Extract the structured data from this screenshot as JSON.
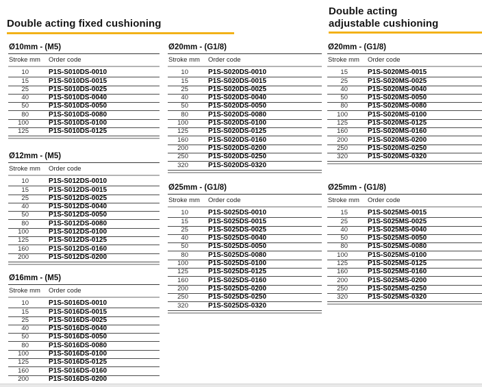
{
  "accent_color": "#F2B117",
  "sections": {
    "fixed": {
      "title": "Double acting fixed cushioning"
    },
    "adjustable": {
      "title_line1": "Double acting",
      "title_line2": "adjustable cushioning"
    }
  },
  "columns": {
    "stroke": "Stroke mm",
    "code": "Order code"
  },
  "tables": [
    {
      "heading": "Ø10mm - (M5)",
      "section": "fixed",
      "rows": [
        [
          "10",
          "P1S-S010DS-0010"
        ],
        [
          "15",
          "P1S-S010DS-0015"
        ],
        [
          "25",
          "P1S-S010DS-0025"
        ],
        [
          "40",
          "P1S-S010DS-0040"
        ],
        [
          "50",
          "P1S-S010DS-0050"
        ],
        [
          "80",
          "P1S-S010DS-0080"
        ],
        [
          "100",
          "P1S-S010DS-0100"
        ],
        [
          "125",
          "P1S-S010DS-0125"
        ]
      ]
    },
    {
      "heading": "Ø12mm - (M5)",
      "section": "fixed",
      "rows": [
        [
          "10",
          "P1S-S012DS-0010"
        ],
        [
          "15",
          "P1S-S012DS-0015"
        ],
        [
          "25",
          "P1S-S012DS-0025"
        ],
        [
          "40",
          "P1S-S012DS-0040"
        ],
        [
          "50",
          "P1S-S012DS-0050"
        ],
        [
          "80",
          "P1S-S012DS-0080"
        ],
        [
          "100",
          "P1S-S012DS-0100"
        ],
        [
          "125",
          "P1S-S012DS-0125"
        ],
        [
          "160",
          "P1S-S012DS-0160"
        ],
        [
          "200",
          "P1S-S012DS-0200"
        ]
      ]
    },
    {
      "heading": "Ø16mm - (M5)",
      "section": "fixed",
      "rows": [
        [
          "10",
          "P1S-S016DS-0010"
        ],
        [
          "15",
          "P1S-S016DS-0015"
        ],
        [
          "25",
          "P1S-S016DS-0025"
        ],
        [
          "40",
          "P1S-S016DS-0040"
        ],
        [
          "50",
          "P1S-S016DS-0050"
        ],
        [
          "80",
          "P1S-S016DS-0080"
        ],
        [
          "100",
          "P1S-S016DS-0100"
        ],
        [
          "125",
          "P1S-S016DS-0125"
        ],
        [
          "160",
          "P1S-S016DS-0160"
        ],
        [
          "200",
          "P1S-S016DS-0200"
        ]
      ]
    },
    {
      "heading": "Ø20mm - (G1/8)",
      "section": "fixed",
      "rows": [
        [
          "10",
          "P1S-S020DS-0010"
        ],
        [
          "15",
          "P1S-S020DS-0015"
        ],
        [
          "25",
          "P1S-S020DS-0025"
        ],
        [
          "40",
          "P1S-S020DS-0040"
        ],
        [
          "50",
          "P1S-S020DS-0050"
        ],
        [
          "80",
          "P1S-S020DS-0080"
        ],
        [
          "100",
          "P1S-S020DS-0100"
        ],
        [
          "125",
          "P1S-S020DS-0125"
        ],
        [
          "160",
          "P1S-S020DS-0160"
        ],
        [
          "200",
          "P1S-S020DS-0200"
        ],
        [
          "250",
          "P1S-S020DS-0250"
        ],
        [
          "320",
          "P1S-S020DS-0320"
        ]
      ]
    },
    {
      "heading": "Ø25mm - (G1/8)",
      "section": "fixed",
      "rows": [
        [
          "10",
          "P1S-S025DS-0010"
        ],
        [
          "15",
          "P1S-S025DS-0015"
        ],
        [
          "25",
          "P1S-S025DS-0025"
        ],
        [
          "40",
          "P1S-S025DS-0040"
        ],
        [
          "50",
          "P1S-S025DS-0050"
        ],
        [
          "80",
          "P1S-S025DS-0080"
        ],
        [
          "100",
          "P1S-S025DS-0100"
        ],
        [
          "125",
          "P1S-S025DS-0125"
        ],
        [
          "160",
          "P1S-S025DS-0160"
        ],
        [
          "200",
          "P1S-S025DS-0200"
        ],
        [
          "250",
          "P1S-S025DS-0250"
        ],
        [
          "320",
          "P1S-S025DS-0320"
        ]
      ]
    },
    {
      "heading": "Ø20mm - (G1/8)",
      "section": "adjustable",
      "rows": [
        [
          "15",
          "P1S-S020MS-0015"
        ],
        [
          "25",
          "P1S-S020MS-0025"
        ],
        [
          "40",
          "P1S-S020MS-0040"
        ],
        [
          "50",
          "P1S-S020MS-0050"
        ],
        [
          "80",
          "P1S-S020MS-0080"
        ],
        [
          "100",
          "P1S-S020MS-0100"
        ],
        [
          "125",
          "P1S-S020MS-0125"
        ],
        [
          "160",
          "P1S-S020MS-0160"
        ],
        [
          "200",
          "P1S-S020MS-0200"
        ],
        [
          "250",
          "P1S-S020MS-0250"
        ],
        [
          "320",
          "P1S-S020MS-0320"
        ]
      ]
    },
    {
      "heading": "Ø25mm - (G1/8)",
      "section": "adjustable",
      "rows": [
        [
          "15",
          "P1S-S025MS-0015"
        ],
        [
          "25",
          "P1S-S025MS-0025"
        ],
        [
          "40",
          "P1S-S025MS-0040"
        ],
        [
          "50",
          "P1S-S025MS-0050"
        ],
        [
          "80",
          "P1S-S025MS-0080"
        ],
        [
          "100",
          "P1S-S025MS-0100"
        ],
        [
          "125",
          "P1S-S025MS-0125"
        ],
        [
          "160",
          "P1S-S025MS-0160"
        ],
        [
          "200",
          "P1S-S025MS-0200"
        ],
        [
          "250",
          "P1S-S025MS-0250"
        ],
        [
          "320",
          "P1S-S025MS-0320"
        ]
      ]
    }
  ]
}
